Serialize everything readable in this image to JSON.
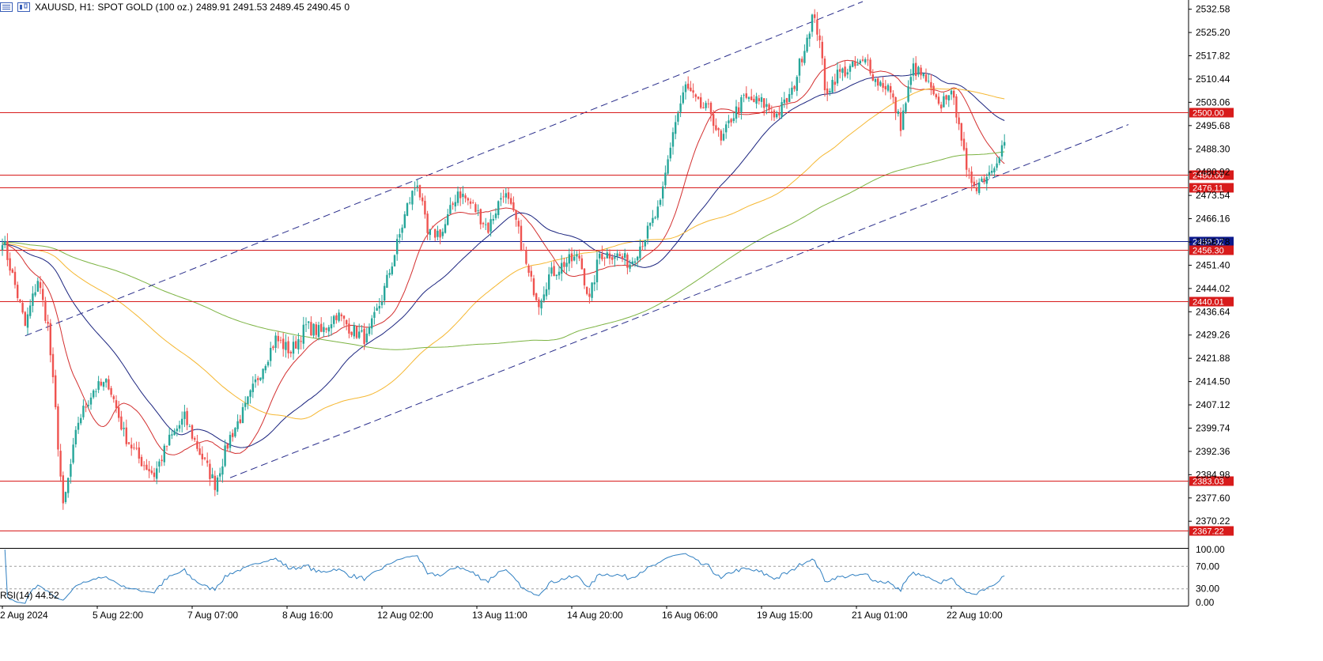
{
  "header": {
    "symbol": "XAUUSD, H1:",
    "description": "SPOT GOLD (100 oz.)",
    "ohlc": "2489.91 2491.53 2489.45 2490.45",
    "tick": "0"
  },
  "colors": {
    "background": "#ffffff",
    "bull": "#26a69a",
    "bear": "#ef5350",
    "axis": "#000000",
    "hline_red": "#d81b1b",
    "hline_blue": "#0d1a8c",
    "channel": "#2b2f8c",
    "ma_red": "#d32f2f",
    "ma_navy": "#1a237e",
    "ma_orange": "#f5b731",
    "ma_green": "#7cb342",
    "rsi": "#2f7fc1"
  },
  "chart_data": {
    "type": "candlestick",
    "symbol": "XAUUSD",
    "timeframe": "H1",
    "ylim": [
      2362.0,
      2535.0
    ],
    "price_ticks": [
      "2532.58",
      "2525.20",
      "2517.82",
      "2510.44",
      "2503.06",
      "2495.68",
      "2488.30",
      "2480.92",
      "2473.54",
      "2466.16",
      "2458.78",
      "2451.40",
      "2444.02",
      "2436.64",
      "2429.26",
      "2421.88",
      "2414.50",
      "2407.12",
      "2399.74",
      "2392.36",
      "2384.98",
      "2377.60",
      "2370.22"
    ],
    "time_labels": [
      "2 Aug 2024",
      "5 Aug 22:00",
      "7 Aug 07:00",
      "8 Aug 16:00",
      "12 Aug 02:00",
      "13 Aug 11:00",
      "14 Aug 20:00",
      "16 Aug 06:00",
      "19 Aug 15:00",
      "21 Aug 01:00",
      "22 Aug 10:00"
    ],
    "anchors": [
      [
        0,
        2460
      ],
      [
        5,
        2445
      ],
      [
        9,
        2432
      ],
      [
        14,
        2447
      ],
      [
        18,
        2432
      ],
      [
        21,
        2405
      ],
      [
        24,
        2374
      ],
      [
        30,
        2402
      ],
      [
        36,
        2412
      ],
      [
        42,
        2414
      ],
      [
        48,
        2398
      ],
      [
        54,
        2390
      ],
      [
        60,
        2385
      ],
      [
        66,
        2396
      ],
      [
        72,
        2403
      ],
      [
        78,
        2392
      ],
      [
        84,
        2382
      ],
      [
        90,
        2397
      ],
      [
        96,
        2406
      ],
      [
        102,
        2418
      ],
      [
        108,
        2428
      ],
      [
        114,
        2424
      ],
      [
        120,
        2432
      ],
      [
        126,
        2430
      ],
      [
        132,
        2436
      ],
      [
        138,
        2431
      ],
      [
        144,
        2428
      ],
      [
        150,
        2441
      ],
      [
        155,
        2455
      ],
      [
        160,
        2470
      ],
      [
        164,
        2478
      ],
      [
        168,
        2461
      ],
      [
        174,
        2462
      ],
      [
        180,
        2475
      ],
      [
        186,
        2470
      ],
      [
        192,
        2463
      ],
      [
        198,
        2475
      ],
      [
        203,
        2465
      ],
      [
        208,
        2448
      ],
      [
        212,
        2440
      ],
      [
        216,
        2448
      ],
      [
        222,
        2452
      ],
      [
        228,
        2454
      ],
      [
        232,
        2440
      ],
      [
        236,
        2455
      ],
      [
        242,
        2455
      ],
      [
        248,
        2452
      ],
      [
        255,
        2462
      ],
      [
        260,
        2470
      ],
      [
        262,
        2480
      ],
      [
        265,
        2494
      ],
      [
        270,
        2508
      ],
      [
        275,
        2502
      ],
      [
        280,
        2500
      ],
      [
        284,
        2490
      ],
      [
        288,
        2498
      ],
      [
        293,
        2504
      ],
      [
        300,
        2503
      ],
      [
        306,
        2499
      ],
      [
        312,
        2506
      ],
      [
        316,
        2518
      ],
      [
        320,
        2530
      ],
      [
        323,
        2524
      ],
      [
        325,
        2506
      ],
      [
        330,
        2512
      ],
      [
        336,
        2514
      ],
      [
        342,
        2516
      ],
      [
        345,
        2510
      ],
      [
        350,
        2508
      ],
      [
        355,
        2496
      ],
      [
        360,
        2514
      ],
      [
        365,
        2510
      ],
      [
        370,
        2501
      ],
      [
        374,
        2507
      ],
      [
        378,
        2498
      ],
      [
        381,
        2480
      ],
      [
        385,
        2477
      ],
      [
        390,
        2481
      ],
      [
        396,
        2490.45
      ]
    ],
    "hlines": [
      {
        "value": 2500.0,
        "label": "2500.00",
        "color": "#d81b1b"
      },
      {
        "value": 2480.0,
        "label": "2480.00",
        "color": "#d81b1b"
      },
      {
        "value": 2476.11,
        "label": "2476.11",
        "color": "#d81b1b"
      },
      {
        "value": 2459.02,
        "label": "2459.02",
        "color": "#0d1a8c"
      },
      {
        "value": 2456.3,
        "label": "2456.30",
        "color": "#d81b1b"
      },
      {
        "value": 2440.01,
        "label": "2440.01",
        "color": "#d81b1b"
      },
      {
        "value": 2383.03,
        "label": "2383.03",
        "color": "#d81b1b"
      },
      {
        "value": 2367.22,
        "label": "2367.22",
        "color": "#d81b1b"
      }
    ],
    "channel_lines": [
      {
        "from": [
          9,
          2429
        ],
        "to": [
          340,
          2535
        ]
      },
      {
        "from": [
          90,
          2384
        ],
        "to": [
          445,
          2496
        ]
      }
    ],
    "moving_averages": [
      {
        "period": 20,
        "color": "#d32f2f"
      },
      {
        "period": 50,
        "color": "#1a237e"
      },
      {
        "period": 100,
        "color": "#f5b731"
      },
      {
        "period": 200,
        "color": "#7cb342"
      }
    ],
    "rsi": {
      "label": "RSI(14) 44.52",
      "levels": [
        "100.00",
        "70.00",
        "30.00",
        "0.00"
      ],
      "overbought": 70,
      "oversold": 30
    }
  }
}
